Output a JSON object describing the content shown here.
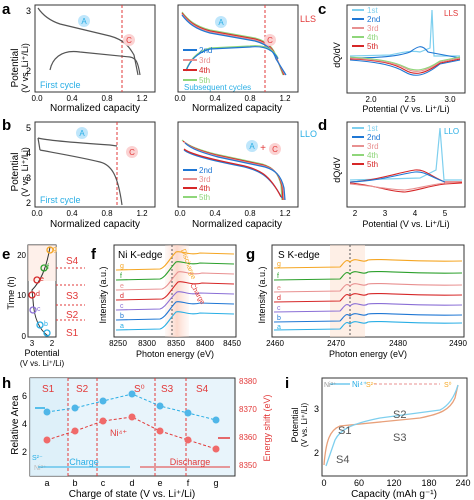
{
  "colors": {
    "first": "#555555",
    "c2": "#1f77d4",
    "c3": "#e89090",
    "c4": "#d62728",
    "c5": "#2ca02c",
    "c1st": "#7ecfee",
    "c5th": "#8fd67a",
    "accent": "#e23a3a",
    "cyan": "#29aee5",
    "orange": "#f5a623"
  },
  "panel_letters": {
    "a": "a",
    "b": "b",
    "c": "c",
    "d": "d",
    "e": "e",
    "f": "f",
    "g": "g",
    "h": "h",
    "i": "i"
  },
  "a": {
    "tag": "LLS",
    "first_cycle": "First cycle",
    "subsequent": "Subsequent cycles",
    "ylabel": "Potential",
    "ylabel2": "(V vs. Li⁺/Li)",
    "xlabel": "Normalized capacity",
    "yticks": [
      "3",
      "2"
    ],
    "xticks": [
      "0.0",
      "0.4",
      "0.8",
      "1.2"
    ],
    "legend": [
      "2nd",
      "3rd",
      "4th",
      "5th"
    ],
    "A": "A",
    "C": "C"
  },
  "b": {
    "tag": "LLO",
    "first_cycle": "First cycle",
    "ylabel": "Potential",
    "ylabel2": "(V vs. Li⁺/Li)",
    "xlabel": "Normalized capacity",
    "yticks": [
      "5",
      "4",
      "3",
      "2"
    ],
    "xticks": [
      "0.0",
      "0.4",
      "0.8",
      "1.2"
    ],
    "legend": [
      "2nd",
      "3rd",
      "4th",
      "5th"
    ],
    "A": "A",
    "C": "C",
    "plus": "+"
  },
  "c": {
    "tag": "LLS",
    "ylabel": "dQ/dV",
    "xlabel": "Potential (V vs. Li⁺/Li)",
    "xticks": [
      "2.0",
      "2.5",
      "3.0"
    ],
    "legend": [
      "1st",
      "2nd",
      "3rd",
      "4th",
      "5th"
    ]
  },
  "d": {
    "tag": "LLO",
    "ylabel": "dQ/dV",
    "xlabel": "Potential (V vs. Li⁺/Li)",
    "xticks": [
      "2",
      "3",
      "4",
      "5"
    ],
    "legend": [
      "1st",
      "2nd",
      "3rd",
      "4th",
      "5th"
    ]
  },
  "e": {
    "ylabel": "Time (h)",
    "xlabel": "Potential",
    "xlabel2": "(V vs. Li⁺/Li)",
    "yticks": [
      "0",
      "10",
      "20"
    ],
    "xticks": [
      "3",
      "2"
    ],
    "stages": [
      "S4",
      "S3",
      "S2",
      "S1"
    ],
    "points": [
      "g",
      "f",
      "e",
      "d",
      "c",
      "b",
      "a"
    ]
  },
  "f": {
    "title": "Ni K-edge",
    "ylabel": "Intensity (a.u.)",
    "xlabel": "Photon energy (eV)",
    "xticks": [
      "8250",
      "8300",
      "8350",
      "8400",
      "8450"
    ],
    "annot1": "Discharge",
    "annot2": "Charge",
    "rows": [
      "g",
      "f",
      "e",
      "d",
      "c",
      "b",
      "a"
    ]
  },
  "g": {
    "title": "S K-edge",
    "ylabel": "Intensity (a.u.)",
    "xlabel": "Photon energy (eV)",
    "xticks": [
      "2460",
      "2470",
      "2480",
      "2490"
    ],
    "rows": [
      "g",
      "f",
      "e",
      "d",
      "c",
      "b",
      "a"
    ]
  },
  "h": {
    "ylabel": "Relative Area",
    "ylabel_r": "Energy shift (eV)",
    "xlabel": "Charge of state (V vs. Li⁺/Li)",
    "yticks": [
      "6",
      "4",
      "2"
    ],
    "yticks_r": [
      "8380",
      "8370",
      "8360",
      "8350"
    ],
    "xticks": [
      "a",
      "b",
      "c",
      "d",
      "e",
      "f",
      "g"
    ],
    "stages": [
      "S1",
      "S2",
      "S⁰",
      "S3",
      "S4"
    ],
    "ni": "Ni⁴⁺",
    "ni2": "Ni²⁺",
    "charge": "Charge",
    "discharge": "Discharge",
    "s2": "S²⁻"
  },
  "i": {
    "ylabel": "Potential",
    "ylabel2": "(V vs. Li⁺/Li)",
    "xlabel": "Capacity (mAh g⁻¹)",
    "yticks": [
      "3",
      "2"
    ],
    "xticks": [
      "0",
      "60",
      "120",
      "180",
      "240"
    ],
    "ni2": "Ni²⁺",
    "ni4": "Ni⁴⁺",
    "s2": "S²⁻",
    "s0": "S⁰",
    "S1": "S1",
    "S2": "S2",
    "S3": "S3",
    "S4": "S4"
  }
}
